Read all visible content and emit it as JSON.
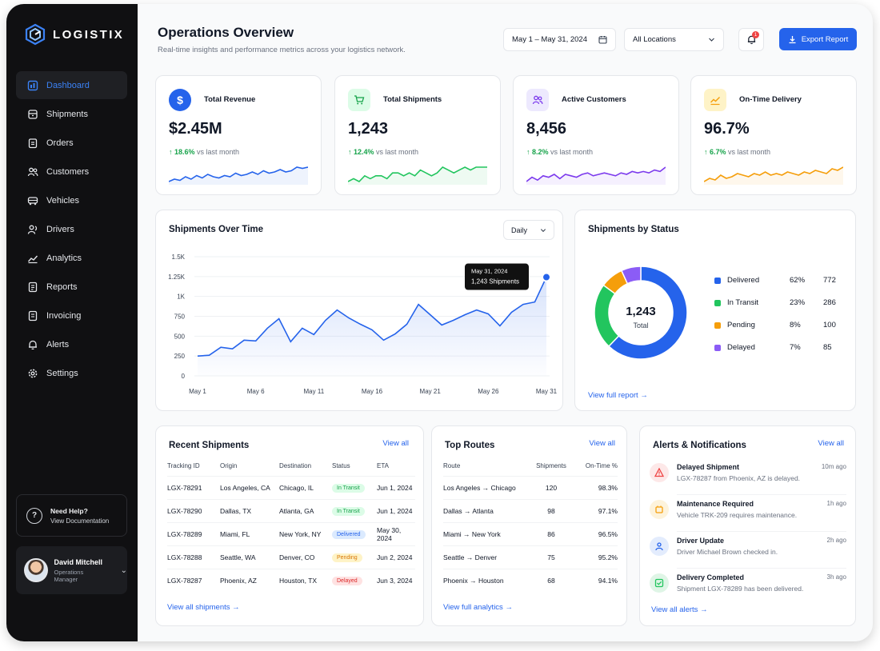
{
  "app": {
    "name": "LOGISTIX"
  },
  "sidebar": {
    "items": [
      {
        "label": "Dashboard",
        "icon": "dashboard-icon",
        "active": true
      },
      {
        "label": "Shipments",
        "icon": "box-icon"
      },
      {
        "label": "Orders",
        "icon": "clipboard-icon"
      },
      {
        "label": "Customers",
        "icon": "users-icon"
      },
      {
        "label": "Vehicles",
        "icon": "truck-icon"
      },
      {
        "label": "Drivers",
        "icon": "driver-icon"
      },
      {
        "label": "Analytics",
        "icon": "analytics-icon"
      },
      {
        "label": "Reports",
        "icon": "report-icon"
      },
      {
        "label": "Invoicing",
        "icon": "invoice-icon"
      },
      {
        "label": "Alerts",
        "icon": "bell-icon"
      },
      {
        "label": "Settings",
        "icon": "gear-icon"
      }
    ],
    "help": {
      "title": "Need Help?",
      "subtitle": "View Documentation"
    },
    "user": {
      "name": "David Mitchell",
      "role": "Operations Manager"
    }
  },
  "header": {
    "title": "Operations Overview",
    "subtitle": "Real-time insights and performance metrics across your logistics network.",
    "date_range": "May 1 – May 31, 2024",
    "location": "All Locations",
    "notification_count": "1",
    "export_label": "Export Report"
  },
  "kpis": [
    {
      "label": "Total Revenue",
      "value": "$2.45M",
      "change": "↑ 18.6%",
      "suffix": "vs last month",
      "color": "#2563eb",
      "icon": "dollar-icon"
    },
    {
      "label": "Total Shipments",
      "value": "1,243",
      "change": "↑ 12.4%",
      "suffix": "vs last month",
      "color": "#22c55e",
      "icon": "cart-icon"
    },
    {
      "label": "Active Customers",
      "value": "8,456",
      "change": "↑ 8.2%",
      "suffix": "vs last month",
      "color": "#7c3aed",
      "icon": "users-icon"
    },
    {
      "label": "On-Time Delivery",
      "value": "96.7%",
      "change": "↑ 6.7%",
      "suffix": "vs last month",
      "color": "#f59e0b",
      "icon": "trend-icon"
    }
  ],
  "shipments_over_time": {
    "title": "Shipments Over Time",
    "period": "Daily",
    "tooltip": {
      "date": "May 31, 2024",
      "value": "1,243 Shipments"
    }
  },
  "shipments_by_status": {
    "title": "Shipments by Status",
    "total_value": "1,243",
    "total_label": "Total",
    "link": "View full report",
    "items": [
      {
        "name": "Delivered",
        "pct": "62%",
        "count": "772",
        "color": "#2563eb"
      },
      {
        "name": "In Transit",
        "pct": "23%",
        "count": "286",
        "color": "#22c55e"
      },
      {
        "name": "Pending",
        "pct": "8%",
        "count": "100",
        "color": "#f59e0b"
      },
      {
        "name": "Delayed",
        "pct": "7%",
        "count": "85",
        "color": "#8b5cf6"
      }
    ]
  },
  "recent_shipments": {
    "title": "Recent Shipments",
    "view_all": "View all",
    "columns": [
      "Tracking ID",
      "Origin",
      "Destination",
      "Status",
      "ETA"
    ],
    "rows": [
      {
        "id": "LGX-78291",
        "origin": "Los Angeles, CA",
        "dest": "Chicago, IL",
        "status": "In Transit",
        "eta": "Jun 1, 2024"
      },
      {
        "id": "LGX-78290",
        "origin": "Dallas, TX",
        "dest": "Atlanta, GA",
        "status": "In Transit",
        "eta": "Jun 1, 2024"
      },
      {
        "id": "LGX-78289",
        "origin": "Miami, FL",
        "dest": "New York, NY",
        "status": "Delivered",
        "eta": "May 30, 2024"
      },
      {
        "id": "LGX-78288",
        "origin": "Seattle, WA",
        "dest": "Denver, CO",
        "status": "Pending",
        "eta": "Jun 2, 2024"
      },
      {
        "id": "LGX-78287",
        "origin": "Phoenix, AZ",
        "dest": "Houston, TX",
        "status": "Delayed",
        "eta": "Jun 3, 2024"
      }
    ],
    "footer_link": "View all shipments"
  },
  "top_routes": {
    "title": "Top Routes",
    "view_all": "View all",
    "columns": [
      "Route",
      "Shipments",
      "On-Time %"
    ],
    "rows": [
      {
        "route": "Los Angeles → Chicago",
        "shipments": "120",
        "ontime": "98.3%"
      },
      {
        "route": "Dallas → Atlanta",
        "shipments": "98",
        "ontime": "97.1%"
      },
      {
        "route": "Miami → New York",
        "shipments": "86",
        "ontime": "96.5%"
      },
      {
        "route": "Seattle → Denver",
        "shipments": "75",
        "ontime": "95.2%"
      },
      {
        "route": "Phoenix → Houston",
        "shipments": "68",
        "ontime": "94.1%"
      }
    ],
    "footer_link": "View full analytics"
  },
  "alerts": {
    "title": "Alerts & Notifications",
    "view_all": "View all",
    "items": [
      {
        "title": "Delayed Shipment",
        "desc": "LGX-78287 from Phoenix, AZ is delayed.",
        "time": "10m ago",
        "icon": "warning-icon",
        "color": "#ef4444",
        "bg": "#fde8e8"
      },
      {
        "title": "Maintenance Required",
        "desc": "Vehicle TRK-209 requires maintenance.",
        "time": "1h ago",
        "icon": "wrench-icon",
        "color": "#f59e0b",
        "bg": "#fdf3dc"
      },
      {
        "title": "Driver Update",
        "desc": "Driver Michael Brown checked in.",
        "time": "2h ago",
        "icon": "driver-icon",
        "color": "#2563eb",
        "bg": "#e3ecfd"
      },
      {
        "title": "Delivery Completed",
        "desc": "Shipment LGX-78289 has been delivered.",
        "time": "3h ago",
        "icon": "check-icon",
        "color": "#22c55e",
        "bg": "#dff5e6"
      }
    ],
    "footer_link": "View all alerts"
  },
  "status_colors": {
    "In Transit": {
      "fg": "#16a34a",
      "bg": "#dcfce7"
    },
    "Delivered": {
      "fg": "#2563eb",
      "bg": "#dbeafe"
    },
    "Pending": {
      "fg": "#d97706",
      "bg": "#fef3c7"
    },
    "Delayed": {
      "fg": "#dc2626",
      "bg": "#fee2e2"
    }
  },
  "chart_data": [
    {
      "type": "line",
      "title": "Shipments Over Time",
      "x": [
        1,
        2,
        3,
        4,
        5,
        6,
        7,
        8,
        9,
        10,
        11,
        12,
        13,
        14,
        15,
        16,
        17,
        18,
        19,
        20,
        21,
        22,
        23,
        24,
        25,
        26,
        27,
        28,
        29,
        30,
        31
      ],
      "x_tick_labels": [
        "May 1",
        "May 6",
        "May 11",
        "May 16",
        "May 21",
        "May 26",
        "May 31"
      ],
      "x_tick_days": [
        1,
        6,
        11,
        16,
        21,
        26,
        31
      ],
      "y_tick_labels": [
        "0",
        "250",
        "500",
        "750",
        "1K",
        "1.25K",
        "1.5K"
      ],
      "y_tick_values": [
        0,
        250,
        500,
        750,
        1000,
        1250,
        1500
      ],
      "ylim": [
        0,
        1500
      ],
      "grid": true,
      "series": [
        {
          "values": [
            250,
            260,
            360,
            340,
            450,
            440,
            600,
            720,
            430,
            600,
            520,
            700,
            830,
            730,
            650,
            580,
            450,
            530,
            650,
            900,
            770,
            640,
            700,
            770,
            830,
            780,
            630,
            800,
            900,
            930,
            1243
          ]
        }
      ]
    },
    {
      "type": "pie",
      "title": "Shipments by Status",
      "categories": [
        "Delivered",
        "In Transit",
        "Pending",
        "Delayed"
      ],
      "values": [
        772,
        286,
        100,
        85
      ]
    },
    {
      "type": "line",
      "series": [
        {
          "values": [
            4,
            6,
            5,
            8,
            6,
            9,
            7,
            10,
            8,
            7,
            9,
            8,
            11,
            9,
            10,
            12,
            10,
            13,
            11,
            12,
            14,
            12,
            13,
            16,
            15,
            16
          ]
        },
        {
          "values": [
            3,
            4,
            3,
            5,
            4,
            5,
            5,
            4,
            6,
            6,
            5,
            6,
            5,
            7,
            6,
            5,
            6,
            8,
            7,
            6,
            7,
            8,
            7,
            8,
            8,
            8
          ]
        },
        {
          "values": [
            5,
            8,
            6,
            9,
            8,
            10,
            7,
            10,
            9,
            8,
            10,
            11,
            9,
            10,
            11,
            10,
            9,
            11,
            10,
            12,
            11,
            12,
            11,
            13,
            12,
            15
          ]
        },
        {
          "values": [
            4,
            6,
            5,
            8,
            6,
            7,
            9,
            8,
            7,
            9,
            8,
            10,
            8,
            9,
            8,
            10,
            9,
            8,
            10,
            9,
            11,
            10,
            9,
            12,
            11,
            13
          ]
        }
      ]
    }
  ]
}
